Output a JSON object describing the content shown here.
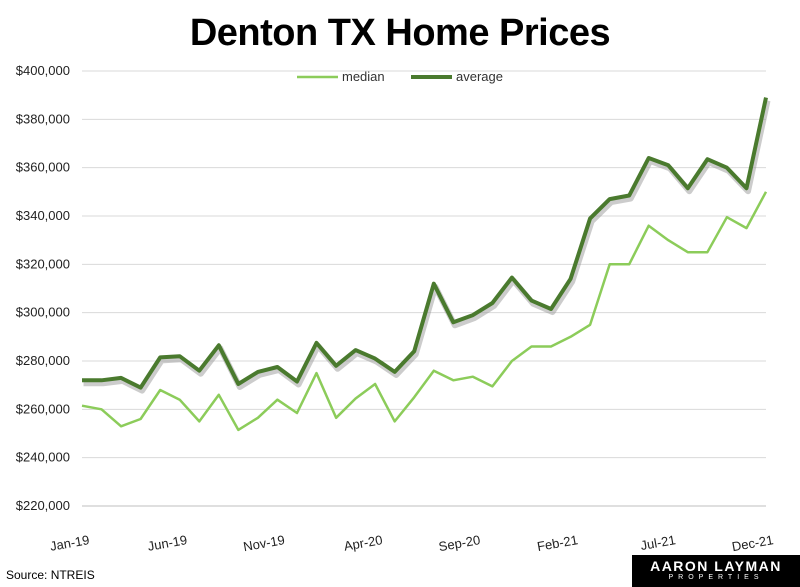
{
  "chart_data": {
    "type": "line",
    "title": "Denton TX Home Prices",
    "x": [
      "Jan-19",
      "Feb-19",
      "Mar-19",
      "Apr-19",
      "May-19",
      "Jun-19",
      "Jul-19",
      "Aug-19",
      "Sep-19",
      "Oct-19",
      "Nov-19",
      "Dec-19",
      "Jan-20",
      "Feb-20",
      "Mar-20",
      "Apr-20",
      "May-20",
      "Jun-20",
      "Jul-20",
      "Aug-20",
      "Sep-20",
      "Oct-20",
      "Nov-20",
      "Dec-20",
      "Jan-21",
      "Feb-21",
      "Mar-21",
      "Apr-21",
      "May-21",
      "Jun-21",
      "Jul-21",
      "Aug-21",
      "Sep-21",
      "Oct-21",
      "Nov-21",
      "Dec-21"
    ],
    "x_tick_labels": [
      "Jan-19",
      "Jun-19",
      "Nov-19",
      "Apr-20",
      "Sep-20",
      "Feb-21",
      "Jul-21",
      "Dec-21"
    ],
    "series": [
      {
        "name": "median",
        "color": "#8ccc5a",
        "values": [
          261500,
          260000,
          253000,
          256000,
          268000,
          264000,
          255000,
          266000,
          251500,
          256500,
          264000,
          258500,
          275000,
          256500,
          264500,
          270500,
          255000,
          265000,
          276000,
          272000,
          273500,
          269500,
          280000,
          286000,
          286000,
          290000,
          295000,
          320000,
          320000,
          336000,
          330000,
          325000,
          325000,
          339500,
          335000,
          350000
        ]
      },
      {
        "name": "average",
        "color": "#4a7a2e",
        "values": [
          272000,
          272000,
          273000,
          269000,
          281500,
          282000,
          276000,
          286500,
          270500,
          275500,
          277500,
          271500,
          287500,
          278000,
          284500,
          281000,
          275500,
          284000,
          312000,
          296000,
          299000,
          304000,
          314500,
          305000,
          301500,
          314000,
          339000,
          347000,
          348500,
          364000,
          361000,
          351500,
          363500,
          360000,
          351500,
          389000
        ]
      }
    ],
    "ylim": [
      220000,
      400000
    ],
    "y_ticks": [
      "$220,000",
      "$240,000",
      "$260,000",
      "$280,000",
      "$300,000",
      "$320,000",
      "$340,000",
      "$360,000",
      "$380,000",
      "$400,000"
    ],
    "grid": true,
    "legend": "top-center"
  },
  "source": "Source: NTREIS",
  "logo": {
    "main": "AARON LAYMAN",
    "sub": "PROPERTIES"
  }
}
